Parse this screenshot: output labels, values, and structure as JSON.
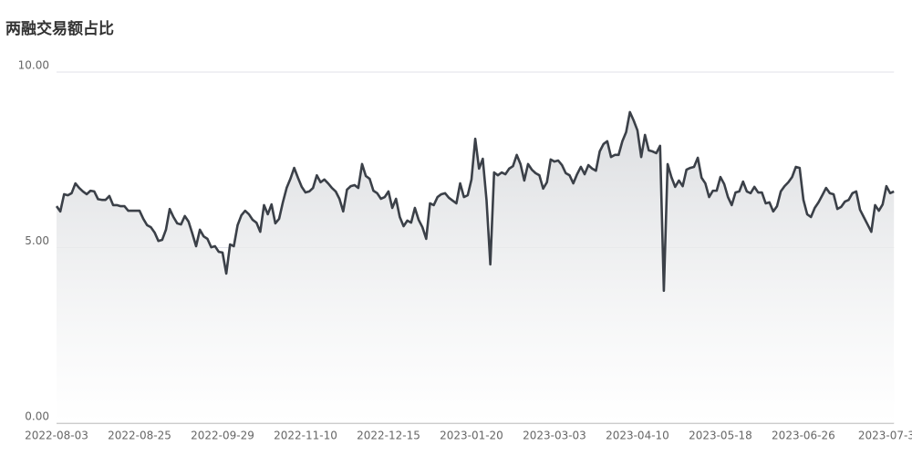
{
  "chart_data": {
    "type": "line",
    "title": "两融交易额占比",
    "categories": [
      "2022-08-03",
      null,
      null,
      null,
      null,
      null,
      null,
      null,
      null,
      null,
      null,
      null,
      null,
      null,
      null,
      null,
      null,
      null,
      null,
      null,
      null,
      null,
      "2022-08-25",
      null,
      null,
      null,
      null,
      null,
      null,
      null,
      null,
      null,
      null,
      null,
      null,
      null,
      null,
      null,
      null,
      null,
      null,
      null,
      null,
      null,
      "2022-09-29",
      null,
      null,
      null,
      null,
      null,
      null,
      null,
      null,
      null,
      null,
      null,
      null,
      null,
      null,
      null,
      null,
      null,
      null,
      null,
      null,
      null,
      "2022-11-10",
      null,
      null,
      null,
      null,
      null,
      null,
      null,
      null,
      null,
      null,
      null,
      null,
      null,
      null,
      null,
      null,
      null,
      null,
      null,
      null,
      null,
      "2022-12-15",
      null,
      null,
      null,
      null,
      null,
      null,
      null,
      null,
      null,
      null,
      null,
      null,
      null,
      null,
      null,
      null,
      null,
      null,
      null,
      null,
      null,
      "2023-01-20",
      null,
      null,
      null,
      null,
      null,
      null,
      null,
      null,
      null,
      null,
      null,
      null,
      null,
      null,
      null,
      null,
      null,
      null,
      null,
      null,
      null,
      "2023-03-03",
      null,
      null,
      null,
      null,
      null,
      null,
      null,
      null,
      null,
      null,
      null,
      null,
      null,
      null,
      null,
      null,
      null,
      null,
      null,
      null,
      null,
      "2023-04-10",
      null,
      null,
      null,
      null,
      null,
      null,
      null,
      null,
      null,
      null,
      null,
      null,
      null,
      null,
      null,
      null,
      null,
      null,
      null,
      null,
      null,
      "2023-05-18",
      null,
      null,
      null,
      null,
      null,
      null,
      null,
      null,
      null,
      null,
      null,
      null,
      null,
      null,
      null,
      null,
      null,
      null,
      null,
      null,
      null,
      "2023-06-26",
      null,
      null,
      null,
      null,
      null,
      null,
      null,
      null,
      null,
      null,
      null,
      null,
      null,
      null,
      null,
      null,
      null,
      null,
      null,
      null,
      null,
      "2023-07-3",
      null,
      null
    ],
    "values": [
      6.18,
      6.03,
      6.52,
      6.49,
      6.55,
      6.83,
      6.7,
      6.6,
      6.52,
      6.62,
      6.6,
      6.38,
      6.36,
      6.36,
      6.47,
      6.21,
      6.21,
      6.18,
      6.18,
      6.05,
      6.05,
      6.05,
      6.05,
      5.82,
      5.64,
      5.58,
      5.43,
      5.19,
      5.22,
      5.51,
      6.1,
      5.87,
      5.69,
      5.66,
      5.9,
      5.74,
      5.4,
      5.04,
      5.51,
      5.32,
      5.25,
      5.01,
      5.04,
      4.88,
      4.86,
      4.26,
      5.09,
      5.04,
      5.64,
      5.92,
      6.05,
      5.95,
      5.79,
      5.71,
      5.45,
      6.21,
      5.95,
      6.23,
      5.69,
      5.82,
      6.29,
      6.7,
      6.96,
      7.27,
      6.99,
      6.73,
      6.57,
      6.6,
      6.7,
      7.06,
      6.86,
      6.94,
      6.83,
      6.7,
      6.6,
      6.39,
      6.03,
      6.65,
      6.75,
      6.78,
      6.7,
      7.38,
      7.04,
      6.96,
      6.62,
      6.55,
      6.39,
      6.44,
      6.6,
      6.13,
      6.39,
      5.87,
      5.61,
      5.77,
      5.71,
      6.13,
      5.79,
      5.58,
      5.25,
      6.26,
      6.21,
      6.44,
      6.52,
      6.55,
      6.42,
      6.34,
      6.26,
      6.83,
      6.44,
      6.49,
      6.94,
      8.1,
      7.25,
      7.53,
      6.34,
      4.52,
      7.14,
      7.06,
      7.14,
      7.09,
      7.25,
      7.32,
      7.64,
      7.38,
      6.91,
      7.38,
      7.22,
      7.12,
      7.06,
      6.68,
      6.86,
      7.51,
      7.45,
      7.48,
      7.35,
      7.12,
      7.06,
      6.83,
      7.09,
      7.3,
      7.09,
      7.35,
      7.25,
      7.19,
      7.74,
      7.95,
      8.03,
      7.58,
      7.64,
      7.64,
      8.03,
      8.29,
      8.86,
      8.62,
      8.34,
      7.58,
      8.21,
      7.77,
      7.74,
      7.69,
      7.9,
      3.77,
      7.38,
      7.01,
      6.73,
      6.91,
      6.75,
      7.22,
      7.27,
      7.3,
      7.56,
      6.99,
      6.83,
      6.44,
      6.62,
      6.62,
      7.01,
      6.81,
      6.44,
      6.21,
      6.57,
      6.6,
      6.88,
      6.6,
      6.55,
      6.73,
      6.57,
      6.57,
      6.26,
      6.29,
      6.03,
      6.18,
      6.6,
      6.75,
      6.86,
      7.01,
      7.3,
      7.27,
      6.36,
      5.95,
      5.87,
      6.13,
      6.29,
      6.49,
      6.7,
      6.55,
      6.52,
      6.1,
      6.16,
      6.31,
      6.36,
      6.55,
      6.6,
      6.08,
      5.87,
      5.66,
      5.45,
      6.21,
      6.05,
      6.23,
      6.75,
      6.55,
      6.6
    ],
    "color": "#3b4048",
    "ylim": [
      0,
      10
    ],
    "yticks": [
      {
        "value": 0,
        "label": "0.00"
      },
      {
        "value": 5,
        "label": "5.00"
      },
      {
        "value": 10,
        "label": "10.00"
      }
    ],
    "grid": true
  }
}
